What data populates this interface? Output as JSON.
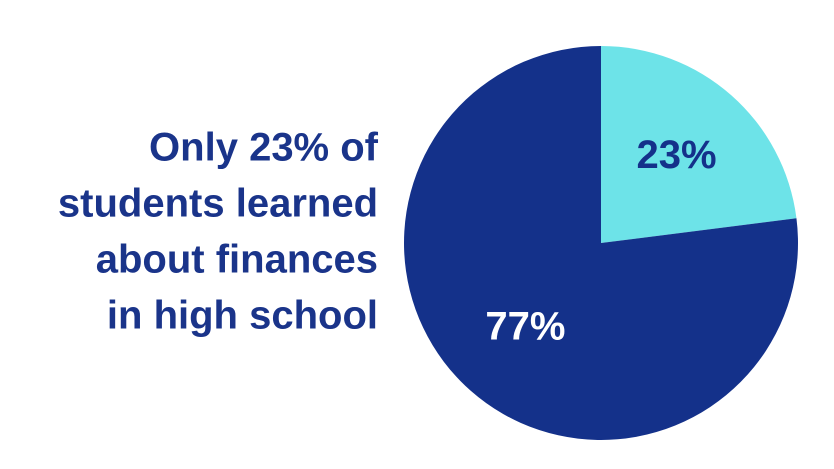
{
  "chart_data": {
    "type": "pie",
    "title": [
      "Only 23% of",
      "students learned",
      "about finances",
      "in high school"
    ],
    "values": [
      23,
      77
    ],
    "value_labels": [
      "23%",
      "77%"
    ],
    "colors": [
      "#6de3e8",
      "#14318a"
    ],
    "label_colors": [
      "#14318a",
      "#ffffff"
    ]
  }
}
